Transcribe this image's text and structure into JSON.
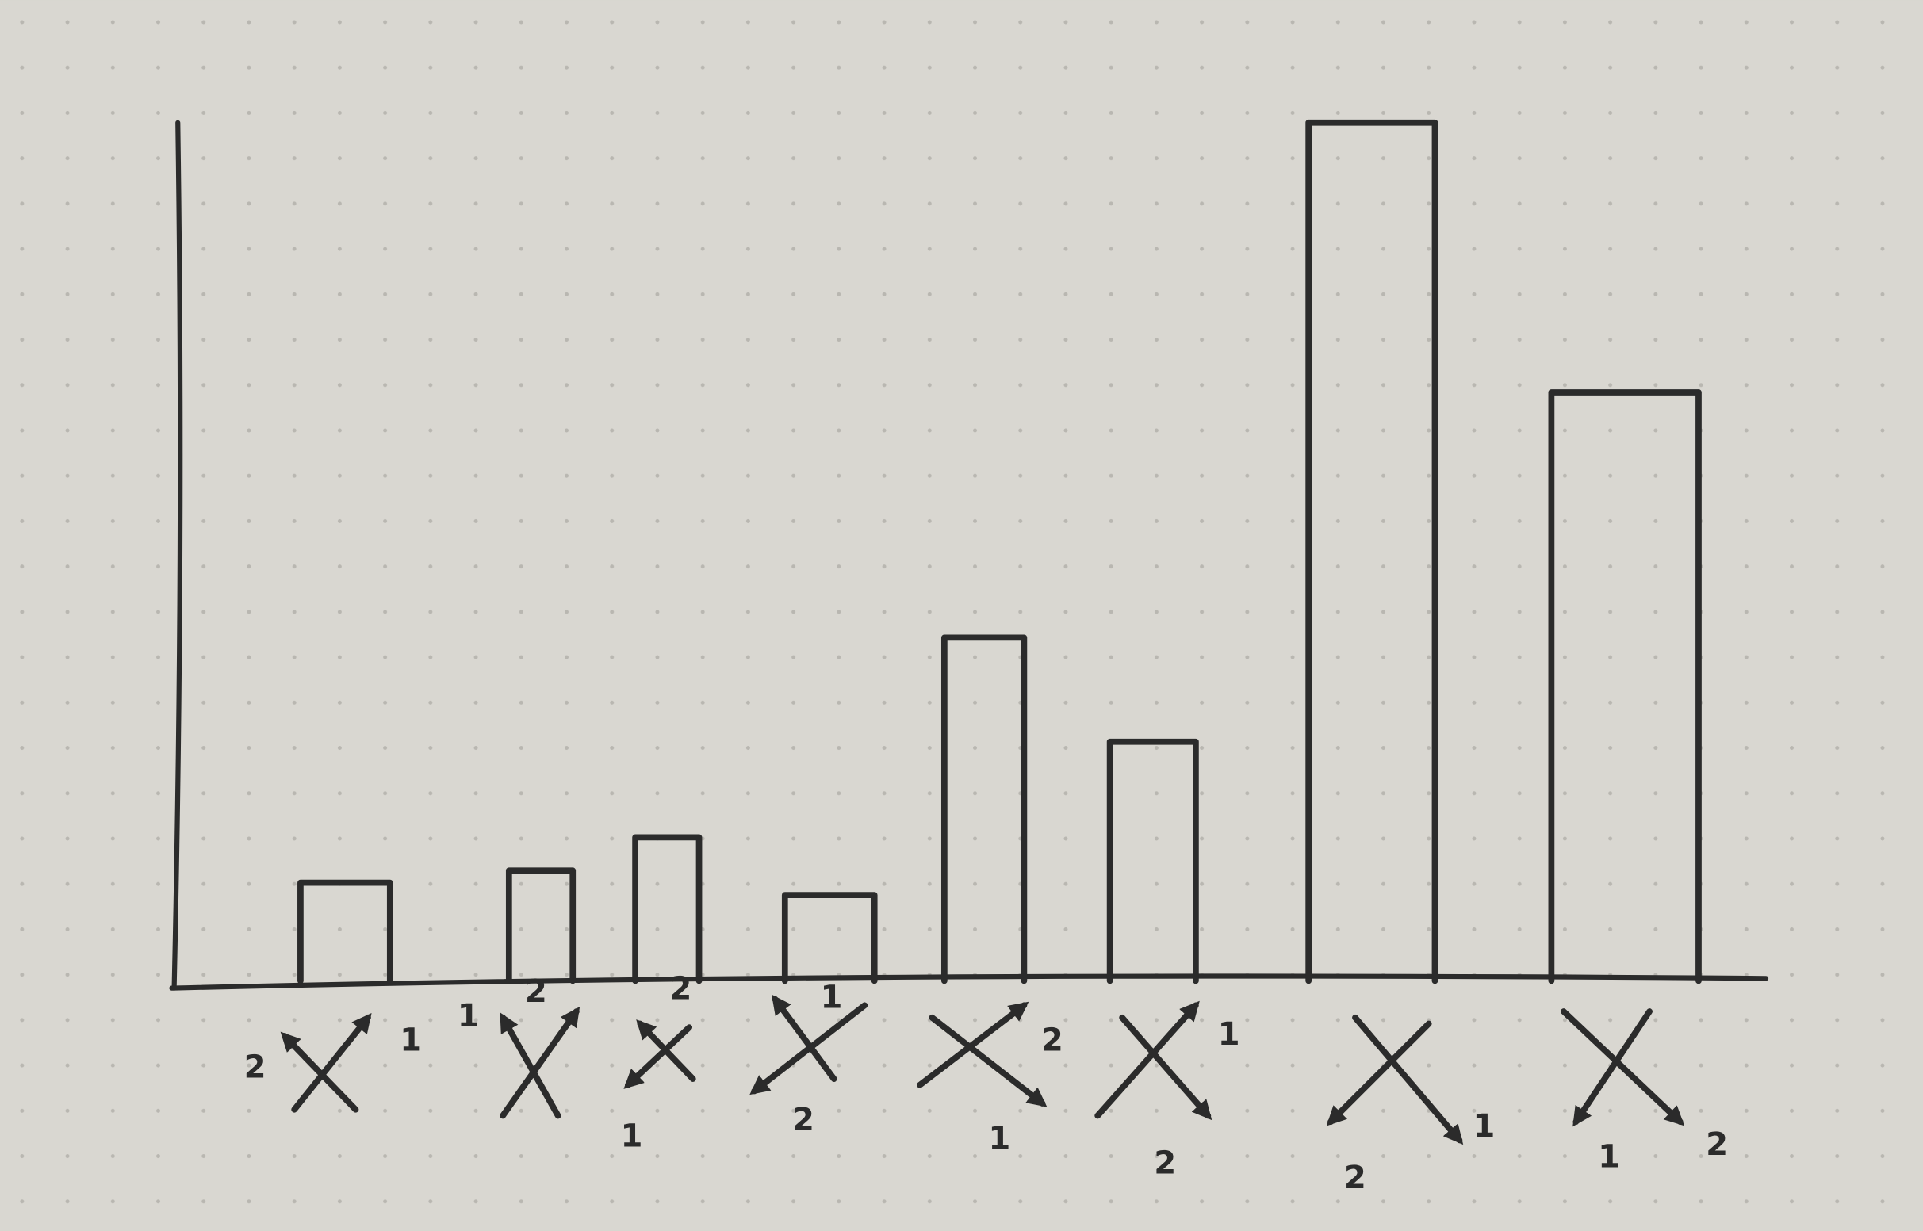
{
  "chart_data": {
    "type": "bar",
    "categories": [
      null,
      null,
      null,
      null,
      null,
      null,
      null,
      null
    ],
    "values": [
      80,
      90,
      117,
      70,
      280,
      195,
      700,
      480
    ],
    "ylim": [
      0,
      700
    ],
    "color": "#2b2b2b",
    "arrow_labels": [
      [
        "2",
        "1"
      ],
      [
        "1",
        "2"
      ],
      [
        "2",
        "1"
      ],
      [
        "1",
        "2"
      ],
      [
        "2",
        "1"
      ],
      [
        "1",
        "2"
      ],
      [
        "2",
        "1"
      ],
      [
        "1",
        "2"
      ]
    ]
  }
}
